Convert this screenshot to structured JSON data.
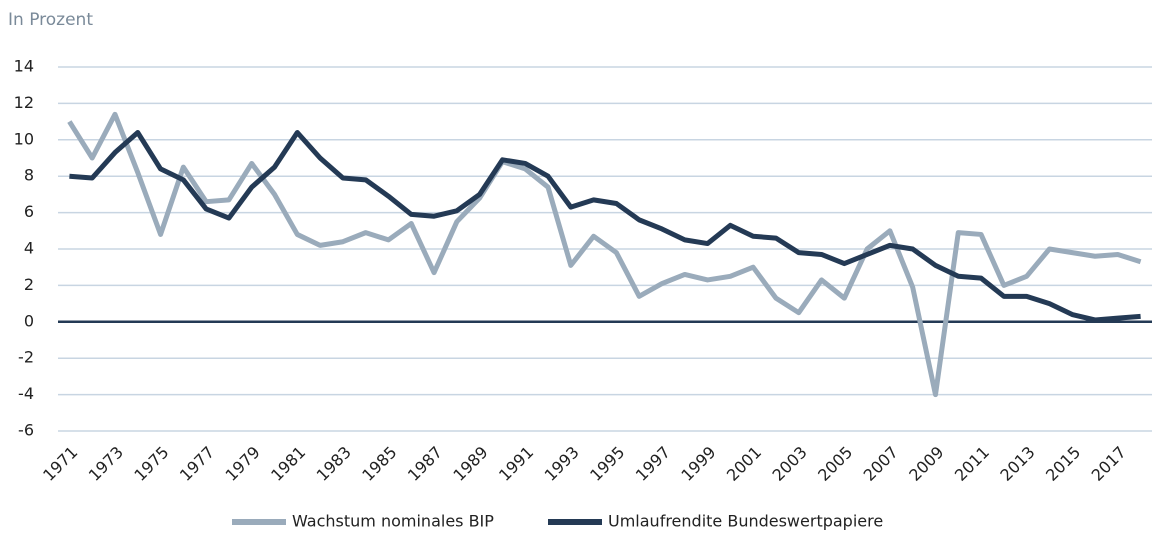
{
  "chart_data": {
    "type": "line",
    "y_axis_label": "In Prozent",
    "categories": [
      "1971",
      null,
      "1973",
      null,
      "1975",
      null,
      "1977",
      null,
      "1979",
      null,
      "1981",
      null,
      "1983",
      null,
      "1985",
      null,
      "1987",
      null,
      "1989",
      null,
      "1991",
      null,
      "1993",
      null,
      "1995",
      null,
      "1997",
      null,
      "1999",
      null,
      "2001",
      null,
      "2003",
      null,
      "2005",
      null,
      "2007",
      null,
      "2009",
      null,
      "2011",
      null,
      "2013",
      null,
      "2015",
      null,
      "2017",
      null
    ],
    "series": [
      {
        "name": "Wachstum nominales BIP",
        "color": "#9aabbb",
        "values": [
          11.0,
          9.0,
          11.4,
          8.2,
          4.8,
          8.5,
          6.6,
          6.7,
          8.7,
          7.0,
          4.8,
          4.2,
          4.4,
          4.9,
          4.5,
          5.4,
          2.7,
          5.5,
          6.8,
          8.8,
          8.4,
          7.4,
          3.1,
          4.7,
          3.8,
          1.4,
          2.1,
          2.6,
          2.3,
          2.5,
          3.0,
          1.3,
          0.5,
          2.3,
          1.3,
          4.0,
          5.0,
          1.9,
          -4.0,
          4.9,
          4.8,
          2.0,
          2.5,
          4.0,
          3.8,
          3.6,
          3.7,
          3.3
        ]
      },
      {
        "name": "Umlaufrendite Bundeswertpapiere",
        "color": "#243a55",
        "values": [
          8.0,
          7.9,
          9.3,
          10.4,
          8.4,
          7.8,
          6.2,
          5.7,
          7.4,
          8.5,
          10.4,
          9.0,
          7.9,
          7.8,
          6.9,
          5.9,
          5.8,
          6.1,
          7.0,
          8.9,
          8.7,
          8.0,
          6.3,
          6.7,
          6.5,
          5.6,
          5.1,
          4.5,
          4.3,
          5.3,
          4.7,
          4.6,
          3.8,
          3.7,
          3.2,
          3.7,
          4.2,
          4.0,
          3.1,
          2.5,
          2.4,
          1.4,
          1.4,
          1.0,
          0.4,
          0.1,
          0.2,
          0.3
        ]
      }
    ],
    "ylim": [
      -6,
      14
    ],
    "yticks": [
      -6,
      -4,
      -2,
      0,
      2,
      4,
      6,
      8,
      10,
      12,
      14
    ],
    "grid": true,
    "legend": "bottom"
  }
}
